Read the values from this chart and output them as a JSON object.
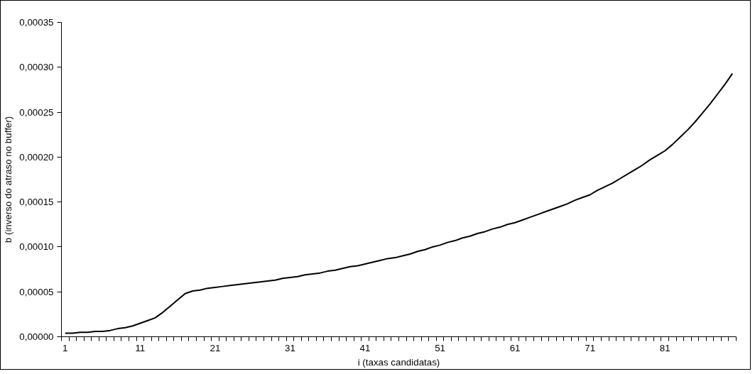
{
  "chart_data": {
    "type": "line",
    "xlabel": "i (taxas candidatas)",
    "ylabel": "b (inverso do atraso no buffer)",
    "categories": [
      "1",
      null,
      null,
      null,
      null,
      null,
      null,
      null,
      null,
      null,
      "11",
      null,
      null,
      null,
      null,
      null,
      null,
      null,
      null,
      null,
      "21",
      null,
      null,
      null,
      null,
      null,
      null,
      null,
      null,
      null,
      "31",
      null,
      null,
      null,
      null,
      null,
      null,
      null,
      null,
      null,
      "41",
      null,
      null,
      null,
      null,
      null,
      null,
      null,
      null,
      null,
      "51",
      null,
      null,
      null,
      null,
      null,
      null,
      null,
      null,
      null,
      "61",
      null,
      null,
      null,
      null,
      null,
      null,
      null,
      null,
      null,
      "71",
      null,
      null,
      null,
      null,
      null,
      null,
      null,
      null,
      null,
      "81",
      null,
      null,
      null,
      null,
      null,
      null,
      null,
      null,
      null
    ],
    "series": [
      {
        "color": "#000000",
        "values": [
          4e-06,
          4e-06,
          5e-06,
          5e-06,
          6e-06,
          6e-06,
          7e-06,
          9e-06,
          1e-05,
          1.2e-05,
          1.5e-05,
          1.8e-05,
          2.1e-05,
          2.7e-05,
          3.4e-05,
          4.1e-05,
          4.8e-05,
          5.1e-05,
          5.2e-05,
          5.4e-05,
          5.5e-05,
          5.6e-05,
          5.7e-05,
          5.8e-05,
          5.9e-05,
          6e-05,
          6.1e-05,
          6.2e-05,
          6.3e-05,
          6.5e-05,
          6.6e-05,
          6.7e-05,
          6.9e-05,
          7e-05,
          7.1e-05,
          7.3e-05,
          7.4e-05,
          7.6e-05,
          7.8e-05,
          7.9e-05,
          8.1e-05,
          8.3e-05,
          8.5e-05,
          8.7e-05,
          8.8e-05,
          9e-05,
          9.2e-05,
          9.5e-05,
          9.7e-05,
          0.0001,
          0.000102,
          0.000105,
          0.000107,
          0.00011,
          0.000112,
          0.000115,
          0.000117,
          0.00012,
          0.000122,
          0.000125,
          0.000127,
          0.00013,
          0.000133,
          0.000136,
          0.000139,
          0.000142,
          0.000145,
          0.000148,
          0.000152,
          0.000155,
          0.000158,
          0.000163,
          0.000167,
          0.000171,
          0.000176,
          0.000181,
          0.000186,
          0.000191,
          0.000197,
          0.000202,
          0.000207,
          0.000214,
          0.000222,
          0.00023,
          0.000239,
          0.000249,
          0.000259,
          0.00027,
          0.000281,
          0.000293
        ]
      }
    ],
    "ylim": [
      0,
      0.00035
    ],
    "yticks": [
      {
        "value": 0,
        "label": "0,00000"
      },
      {
        "value": 5e-05,
        "label": "0,00005"
      },
      {
        "value": 0.0001,
        "label": "0,00010"
      },
      {
        "value": 0.00015,
        "label": "0,00015"
      },
      {
        "value": 0.0002,
        "label": "0,00020"
      },
      {
        "value": 0.00025,
        "label": "0,00025"
      },
      {
        "value": 0.0003,
        "label": "0,00030"
      },
      {
        "value": 0.00035,
        "label": "0,00035"
      }
    ],
    "grid": false,
    "marker": "none",
    "line_style": "solid"
  }
}
